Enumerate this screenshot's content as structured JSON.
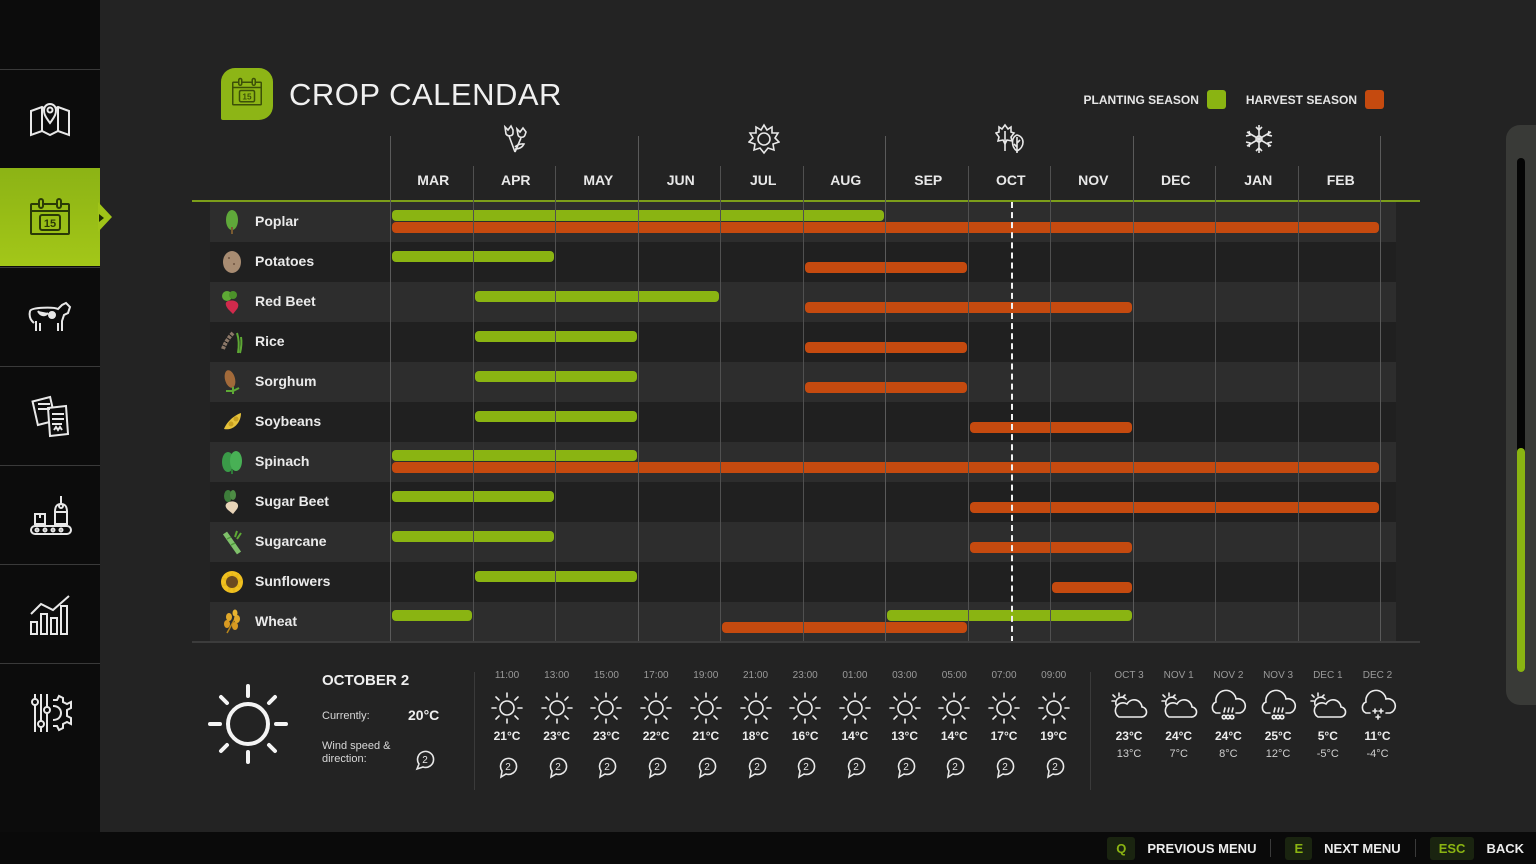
{
  "header": {
    "title": "CROP CALENDAR",
    "title_icon": "calendar-15-icon",
    "legend": [
      {
        "label": "PLANTING SEASON",
        "color": "#8ab412"
      },
      {
        "label": "HARVEST SEASON",
        "color": "#c54a0f"
      }
    ]
  },
  "sidebar": {
    "items": [
      {
        "name": "map",
        "icon": "map-pin-icon",
        "active": false
      },
      {
        "name": "calendar",
        "icon": "calendar-15-icon",
        "active": true,
        "icon_text": "15"
      },
      {
        "name": "animals",
        "icon": "cow-icon",
        "active": false
      },
      {
        "name": "contracts",
        "icon": "documents-icon",
        "active": false
      },
      {
        "name": "production",
        "icon": "conveyor-icon",
        "active": false
      },
      {
        "name": "statistics",
        "icon": "bar-chart-icon",
        "active": false
      },
      {
        "name": "settings",
        "icon": "sliders-gear-icon",
        "active": false
      }
    ]
  },
  "calendar": {
    "seasons": [
      {
        "name": "spring",
        "icon": "tulips-icon"
      },
      {
        "name": "summer",
        "icon": "sun-icon"
      },
      {
        "name": "autumn",
        "icon": "leaves-icon"
      },
      {
        "name": "winter",
        "icon": "snowflake-icon"
      }
    ],
    "months": [
      "MAR",
      "APR",
      "MAY",
      "JUN",
      "JUL",
      "AUG",
      "SEP",
      "OCT",
      "NOV",
      "DEC",
      "JAN",
      "FEB"
    ],
    "today_marker": "OCT",
    "crops": [
      {
        "name": "Poplar",
        "icon": "poplar-icon",
        "planting": [
          [
            0,
            6
          ]
        ],
        "harvest": [
          [
            0,
            12
          ]
        ]
      },
      {
        "name": "Potatoes",
        "icon": "potato-icon",
        "planting": [
          [
            0,
            2
          ]
        ],
        "harvest": [
          [
            5,
            7
          ]
        ]
      },
      {
        "name": "Red Beet",
        "icon": "red-beet-icon",
        "planting": [
          [
            1,
            4
          ]
        ],
        "harvest": [
          [
            5,
            9
          ]
        ]
      },
      {
        "name": "Rice",
        "icon": "rice-icon",
        "planting": [
          [
            1,
            3
          ]
        ],
        "harvest": [
          [
            5,
            7
          ]
        ]
      },
      {
        "name": "Sorghum",
        "icon": "sorghum-icon",
        "planting": [
          [
            1,
            3
          ]
        ],
        "harvest": [
          [
            5,
            7
          ]
        ]
      },
      {
        "name": "Soybeans",
        "icon": "soybeans-icon",
        "planting": [
          [
            1,
            3
          ]
        ],
        "harvest": [
          [
            7,
            9
          ]
        ]
      },
      {
        "name": "Spinach",
        "icon": "spinach-icon",
        "planting": [
          [
            0,
            3
          ]
        ],
        "harvest": [
          [
            0,
            12
          ]
        ]
      },
      {
        "name": "Sugar Beet",
        "icon": "sugar-beet-icon",
        "planting": [
          [
            0,
            2
          ]
        ],
        "harvest": [
          [
            7,
            12
          ]
        ]
      },
      {
        "name": "Sugarcane",
        "icon": "sugarcane-icon",
        "planting": [
          [
            0,
            2
          ]
        ],
        "harvest": [
          [
            7,
            9
          ]
        ]
      },
      {
        "name": "Sunflowers",
        "icon": "sunflower-icon",
        "planting": [
          [
            1,
            3
          ]
        ],
        "harvest": [
          [
            8,
            9
          ]
        ]
      },
      {
        "name": "Wheat",
        "icon": "wheat-icon",
        "planting": [
          [
            0,
            1
          ],
          [
            6,
            9
          ]
        ],
        "harvest": [
          [
            4,
            7
          ]
        ]
      }
    ]
  },
  "weather": {
    "date": "OCTOBER 2",
    "current_label": "Currently:",
    "current_temp": "20°C",
    "wind_label": "Wind speed & direction:",
    "wind_value": "2",
    "current_icon": "sun-icon",
    "hourly": [
      {
        "time": "11:00",
        "icon": "sun-icon",
        "temp": "21°C",
        "wind": "2"
      },
      {
        "time": "13:00",
        "icon": "sun-icon",
        "temp": "23°C",
        "wind": "2"
      },
      {
        "time": "15:00",
        "icon": "sun-icon",
        "temp": "23°C",
        "wind": "2"
      },
      {
        "time": "17:00",
        "icon": "sun-icon",
        "temp": "22°C",
        "wind": "2"
      },
      {
        "time": "19:00",
        "icon": "sun-icon",
        "temp": "21°C",
        "wind": "2"
      },
      {
        "time": "21:00",
        "icon": "sun-icon",
        "temp": "18°C",
        "wind": "2"
      },
      {
        "time": "23:00",
        "icon": "sun-icon",
        "temp": "16°C",
        "wind": "2"
      },
      {
        "time": "01:00",
        "icon": "sun-icon",
        "temp": "14°C",
        "wind": "2"
      },
      {
        "time": "03:00",
        "icon": "sun-icon",
        "temp": "13°C",
        "wind": "2"
      },
      {
        "time": "05:00",
        "icon": "sun-icon",
        "temp": "14°C",
        "wind": "2"
      },
      {
        "time": "07:00",
        "icon": "sun-icon",
        "temp": "17°C",
        "wind": "2"
      },
      {
        "time": "09:00",
        "icon": "sun-icon",
        "temp": "19°C",
        "wind": "2"
      }
    ],
    "daily": [
      {
        "day": "OCT 3",
        "icon": "partly-cloudy-icon",
        "high": "23°C",
        "low": "13°C"
      },
      {
        "day": "NOV 1",
        "icon": "partly-cloudy-icon",
        "high": "24°C",
        "low": "7°C"
      },
      {
        "day": "NOV 2",
        "icon": "hail-icon",
        "high": "24°C",
        "low": "8°C"
      },
      {
        "day": "NOV 3",
        "icon": "hail-icon",
        "high": "25°C",
        "low": "12°C"
      },
      {
        "day": "DEC 1",
        "icon": "partly-cloudy-icon",
        "high": "5°C",
        "low": "-5°C"
      },
      {
        "day": "DEC 2",
        "icon": "snow-icon",
        "high": "11°C",
        "low": "-4°C"
      }
    ]
  },
  "footer": {
    "actions": [
      {
        "key": "Q",
        "label": "PREVIOUS MENU"
      },
      {
        "key": "E",
        "label": "NEXT MENU"
      },
      {
        "key": "ESC",
        "label": "BACK"
      }
    ]
  },
  "scrollbar": {
    "position_percent": 57
  }
}
